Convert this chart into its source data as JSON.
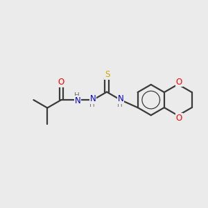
{
  "background_color": "#ebebeb",
  "bond_color": "#3a3a3a",
  "atom_colors": {
    "O": "#ff0000",
    "N": "#0000cc",
    "S": "#ccaa00",
    "H": "#707070"
  },
  "figsize": [
    3.0,
    3.0
  ],
  "dpi": 100
}
